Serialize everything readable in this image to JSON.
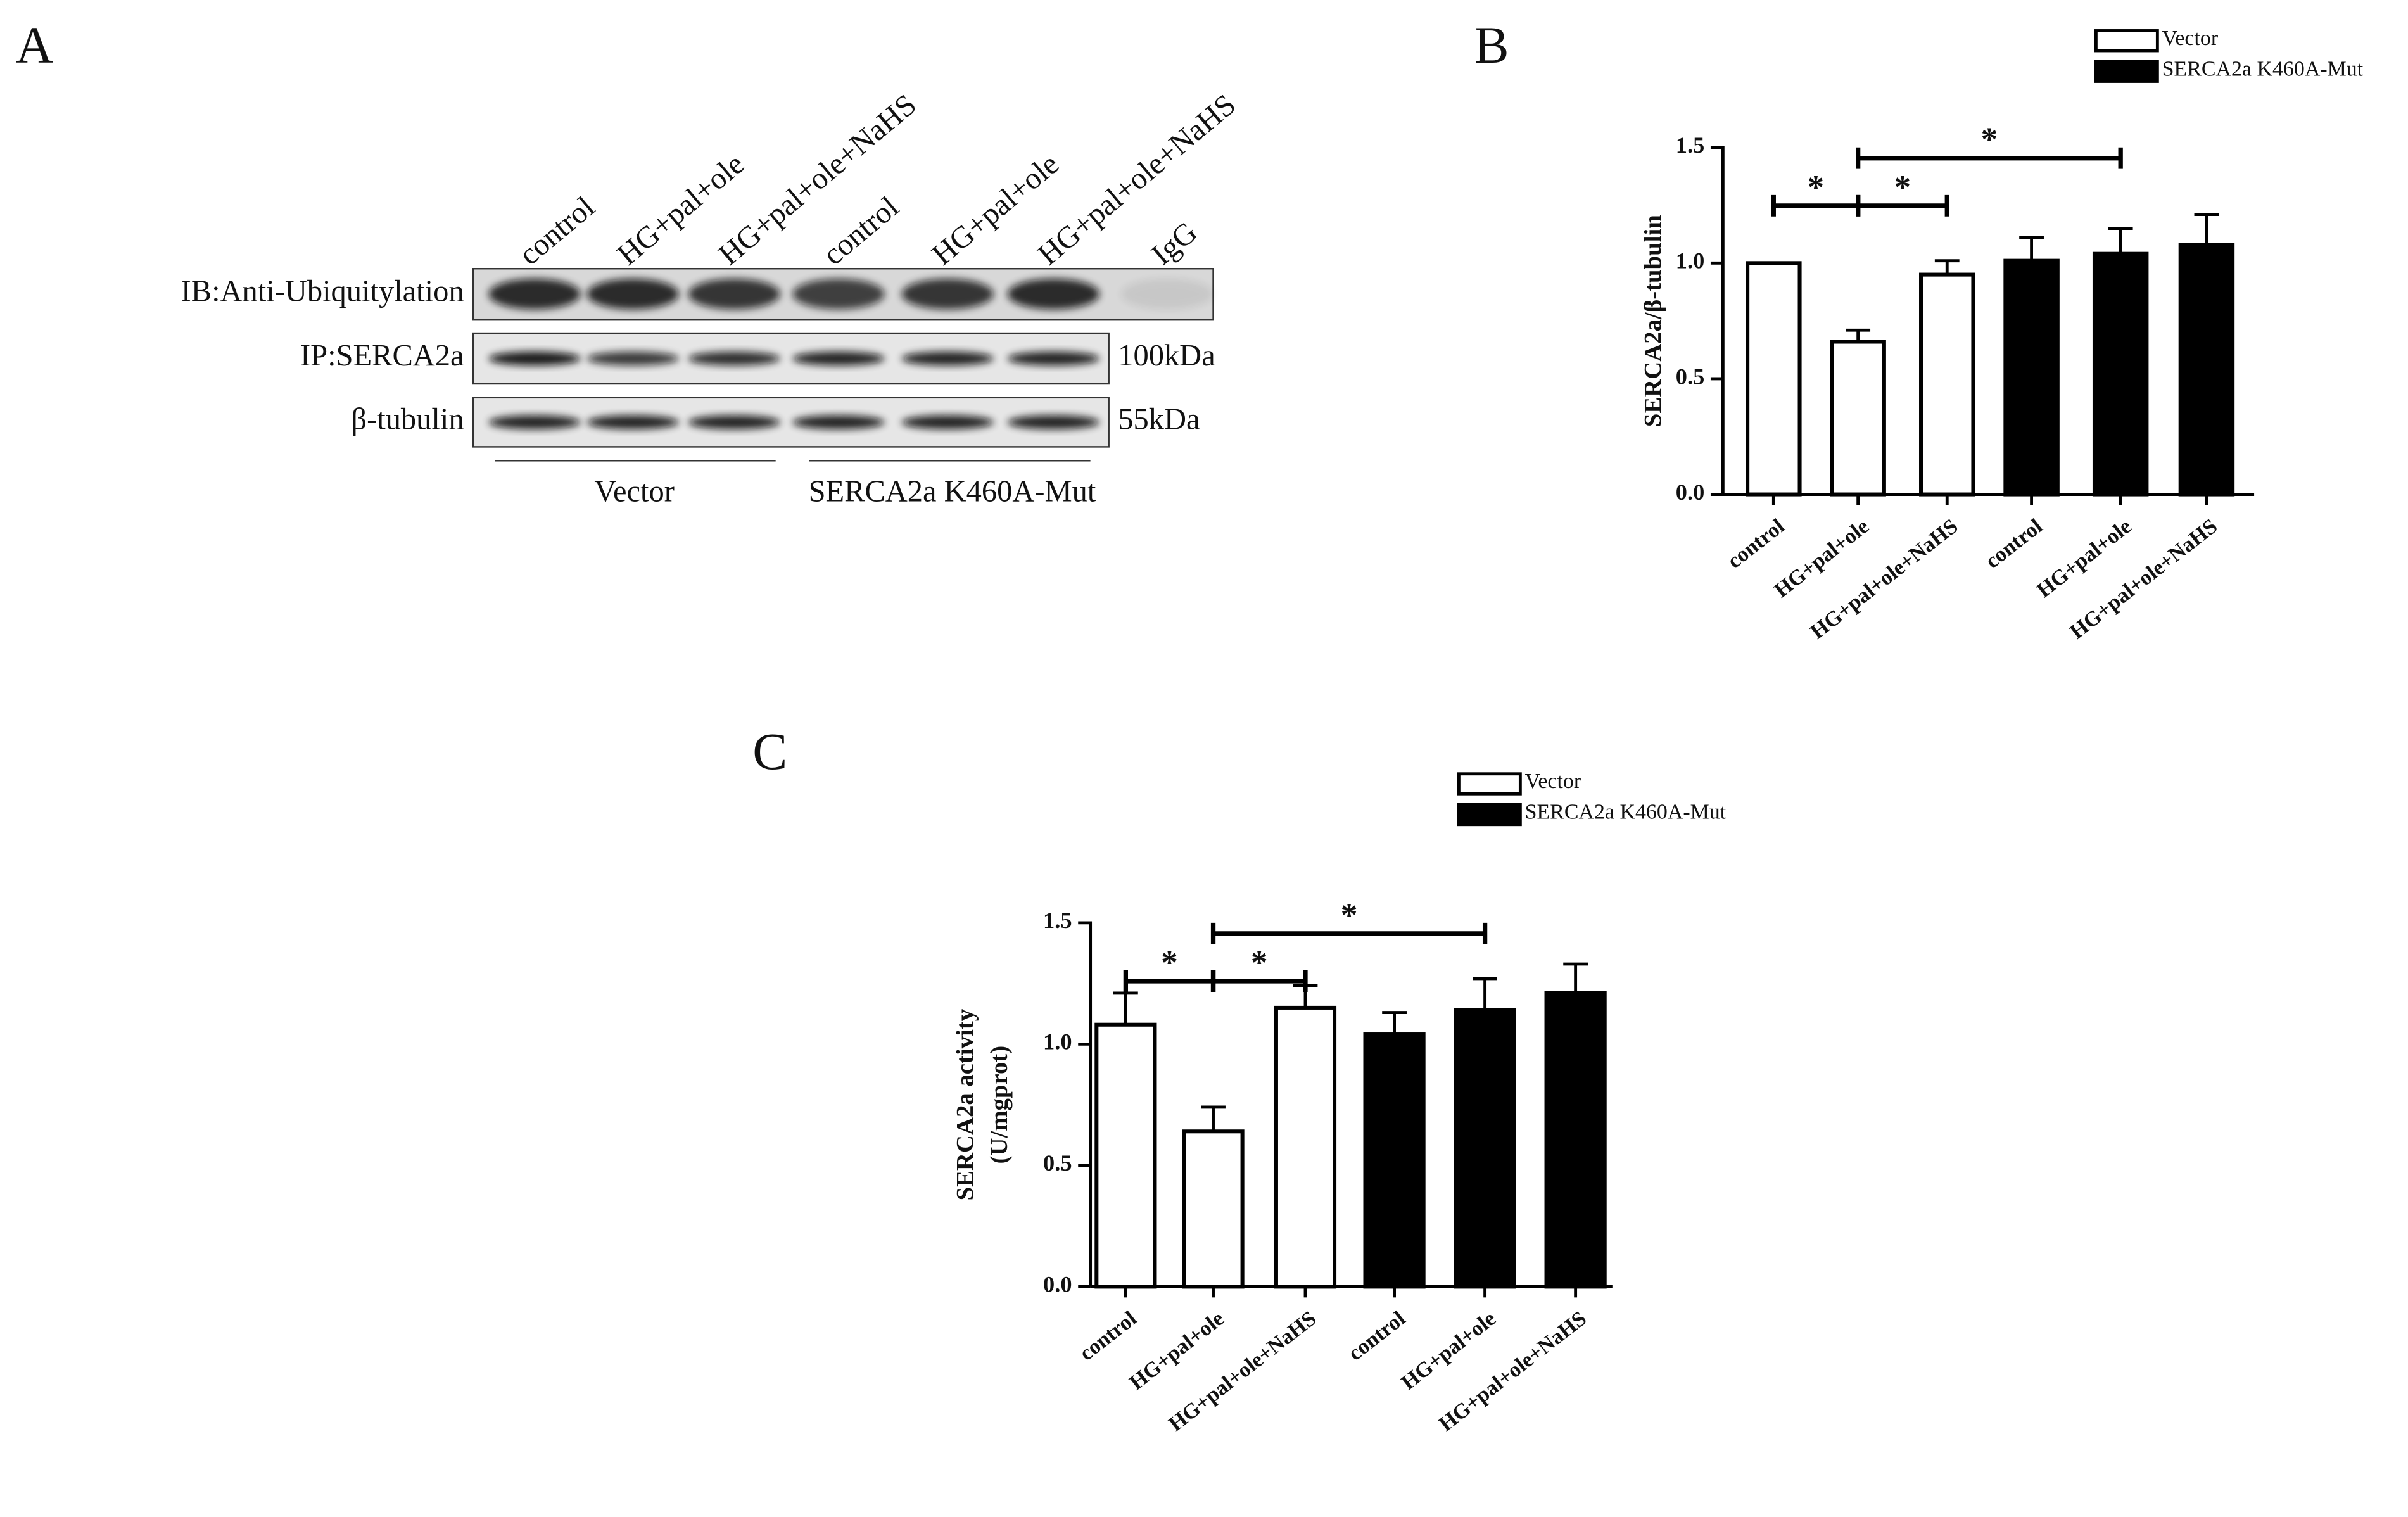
{
  "panel_a": {
    "label": "A",
    "lanes": [
      "control",
      "HG+pal+ole",
      "HG+pal+ole+NaHS",
      "control",
      "HG+pal+ole",
      "HG+pal+ole+NaHS",
      "IgG"
    ],
    "rows": [
      "IB:Anti-Ubiquitylation",
      "IP:SERCA2a",
      "β-tubulin"
    ],
    "sizes": [
      "100kDa",
      "55kDa"
    ],
    "groups": [
      "Vector",
      "SERCA2a K460A-Mut"
    ]
  },
  "chart_data": [
    {
      "type": "bar",
      "panel_label": "B",
      "ylabel": [
        "SERCA2a/β-tubulin"
      ],
      "categories": [
        "control",
        "HG+pal+ole",
        "HG+pal+ole+NaHS",
        "control",
        "HG+pal+ole",
        "HG+pal+ole+NaHS"
      ],
      "series": [
        {
          "name": "Vector",
          "color": "#ffffff",
          "values": [
            1.0,
            0.66,
            0.95,
            null,
            null,
            null
          ],
          "errors": [
            0,
            0.05,
            0.06,
            null,
            null,
            null
          ]
        },
        {
          "name": "SERCA2a K460A-Mut",
          "color": "#000000",
          "values": [
            null,
            null,
            null,
            1.01,
            1.04,
            1.08
          ],
          "errors": [
            null,
            null,
            null,
            0.1,
            0.11,
            0.13
          ]
        }
      ],
      "ylim": [
        0,
        1.5
      ],
      "yticks": [
        {
          "value": 0,
          "label": "0.0"
        },
        0.5,
        {
          "value": 1,
          "label": "1.0"
        },
        1.5
      ],
      "significance": [
        {
          "from": 0,
          "to": 1,
          "label": "*"
        },
        {
          "from": 1,
          "to": 2,
          "label": "*"
        },
        {
          "from": 1,
          "to": 4,
          "label": "*"
        }
      ]
    },
    {
      "type": "bar",
      "panel_label": "C",
      "ylabel": [
        "SERCA2a activity",
        "(U/mgprot)"
      ],
      "categories": [
        "control",
        "HG+pal+ole",
        "HG+pal+ole+NaHS",
        "control",
        "HG+pal+ole",
        "HG+pal+ole+NaHS"
      ],
      "series": [
        {
          "name": "Vector",
          "color": "#ffffff",
          "values": [
            1.08,
            0.64,
            1.15,
            null,
            null,
            null
          ],
          "errors": [
            0.13,
            0.1,
            0.09,
            null,
            null,
            null
          ]
        },
        {
          "name": "SERCA2a K460A-Mut",
          "color": "#000000",
          "values": [
            null,
            null,
            null,
            1.04,
            1.14,
            1.21
          ],
          "errors": [
            null,
            null,
            null,
            0.09,
            0.13,
            0.12
          ]
        }
      ],
      "ylim": [
        0,
        1.5
      ],
      "yticks": [
        {
          "value": 0,
          "label": "0.0"
        },
        0.5,
        {
          "value": 1,
          "label": "1.0"
        },
        1.5
      ],
      "significance": [
        {
          "from": 0,
          "to": 1,
          "label": "*"
        },
        {
          "from": 1,
          "to": 2,
          "label": "*"
        },
        {
          "from": 1,
          "to": 4,
          "label": "*"
        }
      ]
    }
  ]
}
